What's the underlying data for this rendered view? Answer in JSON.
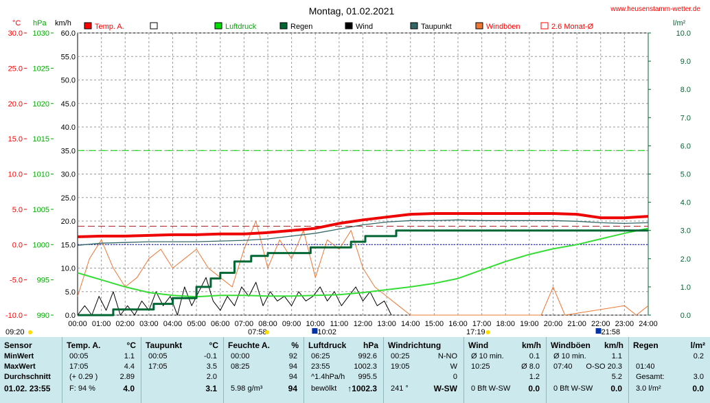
{
  "title": "Montag, 01.02.2021",
  "site": "www.heusenstamm-wetter.de",
  "units": {
    "temp": "°C",
    "pressure": "hPa",
    "wind": "km/h",
    "rain": "l/m²"
  },
  "legend": [
    {
      "label": "Temp. A.",
      "color": "#ff0000"
    },
    {
      "label": "",
      "color": "#ffffff"
    },
    {
      "label": "Luftdruck",
      "color": "#00dd00"
    },
    {
      "label": "Regen",
      "color": "#006633"
    },
    {
      "label": "Wind",
      "color": "#000000"
    },
    {
      "label": "Taupunkt",
      "color": "#336666"
    },
    {
      "label": "Windböen",
      "color": "#ee7733"
    },
    {
      "label": "2.6 Monat-Ø",
      "color": "#ff0000"
    }
  ],
  "events": {
    "sunrise": "07:58",
    "moon1": "10:02",
    "sunset": "17:19",
    "moon2": "21:58",
    "time_left": "09:20"
  },
  "chart_data": {
    "type": "line",
    "x_range": [
      0,
      24
    ],
    "x_ticks": [
      "00:00",
      "01:00",
      "02:00",
      "03:00",
      "04:00",
      "05:00",
      "06:00",
      "07:00",
      "08:00",
      "09:00",
      "10:00",
      "11:00",
      "12:00",
      "13:00",
      "14:00",
      "15:00",
      "16:00",
      "17:00",
      "18:00",
      "19:00",
      "20:00",
      "21:00",
      "22:00",
      "23:00",
      "24:00"
    ],
    "axes": {
      "temp": {
        "range": [
          -10,
          30
        ],
        "ticks": [
          "30.0",
          "25.0",
          "20.0",
          "15.0",
          "10.0",
          "5.0",
          "0.0",
          "-5.0",
          "-10.0"
        ]
      },
      "pressure": {
        "range": [
          990,
          1030
        ],
        "ticks": [
          "1030",
          "1025",
          "1020",
          "1015",
          "1010",
          "1005",
          "1000",
          "995",
          "990"
        ]
      },
      "wind": {
        "range": [
          0,
          60
        ],
        "ticks": [
          "60.0",
          "55.0",
          "50.0",
          "45.0",
          "40.0",
          "35.0",
          "30.0",
          "25.0",
          "20.0",
          "15.0",
          "10.0",
          "5.0",
          "0.0"
        ]
      },
      "rain": {
        "range": [
          0,
          10
        ],
        "ticks": [
          "10.0",
          "9.0",
          "8.0",
          "7.0",
          "6.0",
          "5.0",
          "4.0",
          "3.0",
          "2.0",
          "1.0",
          "0.0"
        ]
      }
    },
    "reference_lines": {
      "temp_monthly_avg": 2.6,
      "pressure_line": 1000,
      "wind_line": 35
    },
    "series": [
      {
        "name": "Temp. A.",
        "axis": "temp",
        "x": [
          0,
          1,
          2,
          3,
          4,
          5,
          6,
          7,
          8,
          9,
          10,
          11,
          12,
          13,
          14,
          15,
          16,
          17,
          18,
          19,
          20,
          21,
          22,
          23,
          24
        ],
        "y": [
          1.1,
          1.2,
          1.2,
          1.3,
          1.4,
          1.4,
          1.5,
          1.5,
          1.7,
          2.0,
          2.3,
          3.0,
          3.5,
          3.9,
          4.3,
          4.4,
          4.4,
          4.4,
          4.4,
          4.4,
          4.4,
          4.3,
          3.8,
          3.8,
          4.0
        ]
      },
      {
        "name": "Taupunkt",
        "axis": "temp",
        "x": [
          0,
          1,
          2,
          3,
          4,
          5,
          6,
          7,
          8,
          9,
          10,
          11,
          12,
          13,
          14,
          15,
          16,
          17,
          18,
          19,
          20,
          21,
          22,
          23,
          24
        ],
        "y": [
          -0.1,
          0.2,
          0.3,
          0.4,
          0.4,
          0.4,
          0.5,
          0.6,
          0.8,
          1.2,
          1.6,
          2.2,
          2.8,
          3.2,
          3.4,
          3.4,
          3.5,
          3.4,
          3.4,
          3.4,
          3.4,
          3.3,
          3.1,
          3.0,
          3.1
        ]
      },
      {
        "name": "Luftdruck",
        "axis": "pressure",
        "x": [
          0,
          1,
          2,
          3,
          4,
          5,
          6,
          7,
          8,
          9,
          10,
          11,
          12,
          13,
          14,
          15,
          16,
          17,
          18,
          19,
          20,
          21,
          22,
          23,
          24
        ],
        "y": [
          996.0,
          995.0,
          994.0,
          993.2,
          992.8,
          992.6,
          992.8,
          992.8,
          992.7,
          992.7,
          992.8,
          992.9,
          993.2,
          993.6,
          994.0,
          994.5,
          995.2,
          996.4,
          997.6,
          998.6,
          999.4,
          1000.0,
          1000.8,
          1001.6,
          1002.3
        ]
      },
      {
        "name": "Regen",
        "axis": "rain",
        "x": [
          0,
          1.5,
          1.5,
          3.2,
          3.2,
          4.0,
          4.0,
          5.0,
          5.0,
          5.6,
          5.6,
          6.0,
          6.0,
          6.6,
          6.6,
          7.3,
          7.3,
          8.0,
          8.0,
          9.8,
          9.8,
          11.5,
          11.5,
          12.1,
          12.1,
          13.4,
          13.4,
          24
        ],
        "y": [
          0,
          0,
          0.2,
          0.2,
          0.4,
          0.4,
          0.6,
          0.6,
          1.0,
          1.0,
          1.3,
          1.3,
          1.5,
          1.5,
          1.9,
          1.9,
          2.1,
          2.1,
          2.2,
          2.2,
          2.4,
          2.4,
          2.6,
          2.6,
          2.8,
          2.8,
          3.0,
          3.0
        ]
      },
      {
        "name": "Wind",
        "axis": "wind",
        "x": [
          0,
          0.3,
          0.6,
          0.9,
          1.2,
          1.5,
          1.8,
          2.1,
          2.4,
          2.7,
          3.0,
          3.3,
          3.6,
          3.9,
          4.2,
          4.5,
          4.8,
          5.1,
          5.4,
          5.7,
          6.0,
          6.3,
          6.6,
          6.9,
          7.2,
          7.5,
          7.8,
          8.1,
          8.4,
          8.7,
          9.0,
          9.3,
          9.6,
          9.9,
          10.2,
          10.5,
          10.8,
          11.1,
          11.4,
          11.7,
          12.0,
          12.3,
          12.6,
          12.9,
          13.2
        ],
        "y": [
          0,
          2,
          0,
          4,
          1,
          5,
          0,
          2,
          0,
          3,
          1,
          5,
          2,
          4,
          0,
          6,
          2,
          5,
          8,
          3,
          1,
          4,
          2,
          6,
          4,
          7,
          2,
          5,
          3,
          4,
          2,
          5,
          3,
          4,
          6,
          3,
          5,
          2,
          4,
          6,
          3,
          5,
          2,
          3,
          0
        ]
      },
      {
        "name": "Windböen",
        "axis": "wind",
        "x": [
          0,
          0.5,
          1.0,
          1.5,
          2.0,
          2.5,
          3.0,
          3.5,
          4.0,
          4.5,
          5.0,
          5.5,
          6.0,
          6.5,
          7.0,
          7.5,
          8.0,
          8.5,
          9.0,
          9.5,
          10.0,
          10.5,
          11.0,
          11.5,
          12.0,
          12.5,
          13.0,
          13.5,
          14.0,
          19.5,
          20.0,
          20.5,
          23.0,
          23.5,
          24.0
        ],
        "y": [
          4,
          12,
          16,
          10,
          6,
          8,
          12,
          14,
          10,
          12,
          14,
          10,
          8,
          6,
          14,
          20,
          10,
          16,
          12,
          18,
          8,
          16,
          14,
          18,
          10,
          6,
          4,
          2,
          0,
          0,
          6,
          0,
          2,
          0,
          2
        ]
      }
    ]
  },
  "table": {
    "columns": [
      {
        "title": "Sensor",
        "unit": ""
      },
      {
        "title": "Temp. A.",
        "unit": "°C"
      },
      {
        "title": "Taupunkt",
        "unit": "°C"
      },
      {
        "title": "Feuchte A.",
        "unit": "%"
      },
      {
        "title": "Luftdruck",
        "unit": "hPa"
      },
      {
        "title": "Windrichtung",
        "unit": ""
      },
      {
        "title": "Wind",
        "unit": "km/h"
      },
      {
        "title": "Windböen",
        "unit": "km/h"
      },
      {
        "title": "Regen",
        "unit": "l/m²"
      }
    ],
    "rows": {
      "sensor": [
        "MinWert",
        "MaxWert",
        "Durchschnitt",
        "01.02. 23:55"
      ],
      "temp": [
        [
          "00:05",
          "1.1"
        ],
        [
          "17:05",
          "4.4"
        ],
        [
          "(+ 0.29 )",
          "2.89"
        ],
        [
          "F: 94 %",
          "4.0"
        ]
      ],
      "dew": [
        [
          "00:05",
          "-0.1"
        ],
        [
          "17:05",
          "3.5"
        ],
        [
          "",
          "2.0"
        ],
        [
          "",
          "3.1"
        ]
      ],
      "hum": [
        [
          "00:00",
          "92"
        ],
        [
          "08:25",
          "94"
        ],
        [
          "",
          "94"
        ],
        [
          "5.98 g/m³",
          "94"
        ]
      ],
      "press": [
        [
          "06:25",
          "992.6"
        ],
        [
          "23:55",
          "1002.3"
        ],
        [
          "^1.4hPa/h",
          "995.5"
        ],
        [
          "bewölkt",
          "↑1002.3"
        ]
      ],
      "dir": [
        [
          "00:25",
          "N-NO"
        ],
        [
          "19:05",
          "W"
        ],
        [
          "",
          "0"
        ],
        [
          "241 °",
          "W-SW"
        ]
      ],
      "wind": [
        [
          "Ø 10 min.",
          "0.1"
        ],
        [
          "10:25",
          "Ø 8.0"
        ],
        [
          "",
          "1.2"
        ],
        [
          "0 Bft W-SW",
          "0.0"
        ]
      ],
      "gust": [
        [
          "Ø 10 min.",
          "1.1"
        ],
        [
          "07:40",
          "O-SO 20.3"
        ],
        [
          "",
          "5.2"
        ],
        [
          "0 Bft W-SW",
          "0.0"
        ]
      ],
      "rain": [
        [
          "",
          "0.2"
        ],
        [
          "01:40",
          ""
        ],
        [
          "Gesamt:",
          "3.0"
        ],
        [
          "3.0 l/m²",
          "0.0"
        ]
      ]
    }
  }
}
